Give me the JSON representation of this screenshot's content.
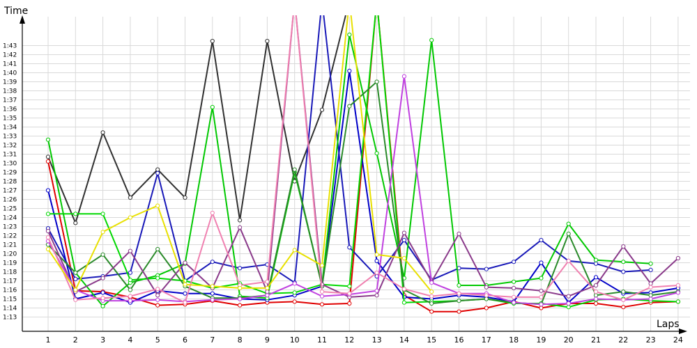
{
  "chart_data": {
    "type": "line",
    "title": "",
    "xlabel": "Laps",
    "ylabel": "Time",
    "x": [
      1,
      2,
      3,
      4,
      5,
      6,
      7,
      8,
      9,
      10,
      11,
      12,
      13,
      14,
      15,
      16,
      17,
      18,
      19,
      20,
      21,
      22,
      23,
      24
    ],
    "xlim": [
      1,
      24
    ],
    "ylim_seconds": [
      73,
      103
    ],
    "ytick_labels": [
      "1:13",
      "1:14",
      "1:15",
      "1:16",
      "1:17",
      "1:18",
      "1:19",
      "1:20",
      "1:21",
      "1:22",
      "1:23",
      "1:24",
      "1:25",
      "1:26",
      "1:27",
      "1:28",
      "1:29",
      "1:30",
      "1:31",
      "1:32",
      "1:33",
      "1:34",
      "1:35",
      "1:36",
      "1:37",
      "1:38",
      "1:39",
      "1:40",
      "1:41",
      "1:42",
      "1:43"
    ],
    "grid": true,
    "legend": "none",
    "value_unit": "seconds",
    "series": [
      {
        "color": "#303030",
        "values": [
          90.7,
          83.4,
          93.4,
          86.2,
          89.3,
          86.2,
          103.5,
          83.7,
          103.5,
          88.0,
          95.9,
          108,
          null,
          null,
          null,
          null,
          null,
          null,
          null,
          null,
          null,
          null,
          null,
          null
        ]
      },
      {
        "color": "#e00000",
        "values": [
          90.2,
          75.9,
          75.8,
          75.2,
          74.3,
          74.4,
          74.8,
          74.3,
          74.6,
          74.7,
          74.4,
          74.5,
          108,
          75.4,
          73.6,
          73.6,
          74.0,
          74.7,
          74.0,
          74.5,
          74.5,
          74.1,
          74.6,
          74.7
        ]
      },
      {
        "color": "#0000c8",
        "values": [
          87.0,
          75.0,
          75.7,
          74.6,
          75.9,
          75.6,
          75.6,
          75.0,
          74.9,
          75.4,
          76.4,
          100.2,
          79.2,
          75.2,
          75.0,
          75.4,
          75.2,
          74.7,
          79.0,
          74.6,
          77.4,
          75.6,
          75.7,
          76.2
        ]
      },
      {
        "color": "#1818b8",
        "values": [
          82.8,
          77.2,
          77.5,
          77.9,
          88.9,
          77.0,
          79.1,
          78.4,
          78.8,
          76.8,
          108,
          80.7,
          77.5,
          81.5,
          77.1,
          78.4,
          78.3,
          79.1,
          81.5,
          79.2,
          78.9,
          78.0,
          78.2,
          null
        ]
      },
      {
        "color": "#00c800",
        "values": [
          92.6,
          77.9,
          74.2,
          76.8,
          77.6,
          78.9,
          96.2,
          75.3,
          75.1,
          89.0,
          76.5,
          104.2,
          91.1,
          77.3,
          103.6,
          76.5,
          76.5,
          76.9,
          77.3,
          83.3,
          79.3,
          79.1,
          78.9,
          null
        ]
      },
      {
        "color": "#00d800",
        "values": [
          84.4,
          84.4,
          84.4,
          77.1,
          77.3,
          77.0,
          76.2,
          76.7,
          75.6,
          75.7,
          76.6,
          76.4,
          108,
          74.6,
          74.7,
          74.8,
          75.0,
          74.5,
          74.5,
          74.1,
          74.9,
          75.0,
          74.8,
          74.7
        ]
      },
      {
        "color": "#2a8a2a",
        "values": [
          81.0,
          77.9,
          79.9,
          76.0,
          80.5,
          76.4,
          75.1,
          75.1,
          75.4,
          89.3,
          76.4,
          96.3,
          99.0,
          76.0,
          74.5,
          74.8,
          75.0,
          74.6,
          74.4,
          82.2,
          75.4,
          75.8,
          75.4,
          75.8
        ]
      },
      {
        "color": "#8a3a8a",
        "values": [
          82.5,
          75.8,
          77.3,
          80.3,
          75.4,
          79.0,
          76.2,
          82.9,
          75.8,
          108,
          76.6,
          75.2,
          75.4,
          82.3,
          76.9,
          82.2,
          76.3,
          76.2,
          75.9,
          75.3,
          76.5,
          80.8,
          76.7,
          79.5
        ]
      },
      {
        "color": "#c040e0",
        "values": [
          81.4,
          76.0,
          74.8,
          74.8,
          74.9,
          74.7,
          74.9,
          75.0,
          75.4,
          76.7,
          75.3,
          75.5,
          75.9,
          99.6,
          76.8,
          75.6,
          75.6,
          74.6,
          74.4,
          74.5,
          75.0,
          74.9,
          75.0,
          75.7
        ]
      },
      {
        "color": "#f080b0",
        "values": [
          81.8,
          74.9,
          75.1,
          75.3,
          76.1,
          74.6,
          84.5,
          76.5,
          76.9,
          108,
          75.8,
          75.6,
          77.9,
          76.1,
          75.3,
          75.6,
          75.4,
          75.2,
          75.2,
          79.2,
          75.8,
          74.9,
          76.3,
          76.5
        ]
      },
      {
        "color": "#e8e000",
        "values": [
          80.5,
          76.0,
          82.4,
          84.0,
          85.3,
          76.6,
          76.4,
          76.2,
          76.2,
          80.4,
          78.7,
          108,
          79.9,
          79.5,
          75.8,
          null,
          null,
          null,
          null,
          null,
          null,
          null,
          null,
          null
        ]
      }
    ]
  }
}
